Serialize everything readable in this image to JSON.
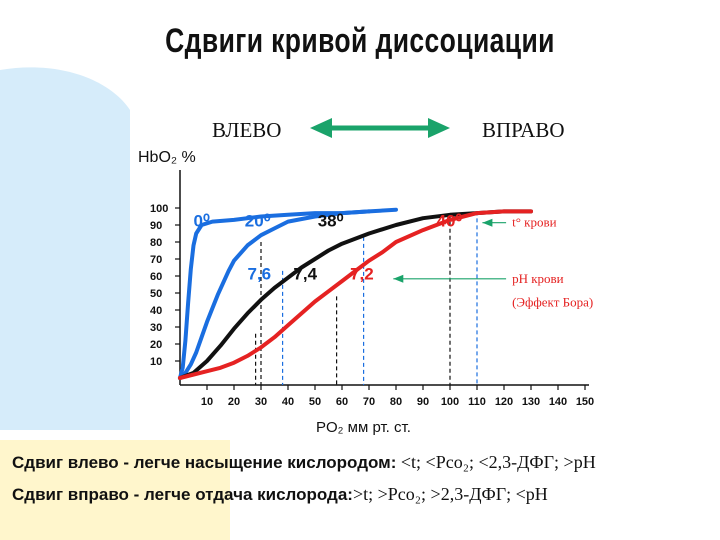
{
  "page": {
    "title": "Сдвиги кривой диссоциации",
    "left_label": "ВЛЕВО",
    "right_label": "ВПРАВО",
    "colors": {
      "accent_green": "#1aa36a",
      "bg_blue": "#d6ecfa",
      "bg_yellow": "#fff6cc"
    },
    "footer_lines": [
      {
        "bold": "Сдвиг влево - легче насыщение кислородом:",
        "rest": " <t; <Pco₂; <2,3-ДФГ; >pH"
      },
      {
        "bold": "Сдвиг вправо - легче отдача кислорода:",
        "rest": ">t; >Pco₂; >2,3-ДФГ; <pH"
      }
    ]
  },
  "chart_data": {
    "type": "line",
    "ylabel": "HbO₂ %",
    "xlabel": "PO₂  мм рт. ст.",
    "xlim": [
      0,
      150
    ],
    "ylim": [
      0,
      100
    ],
    "x_ticks": [
      10,
      20,
      30,
      40,
      50,
      60,
      70,
      80,
      90,
      100,
      110,
      120,
      130,
      140,
      150
    ],
    "y_ticks": [
      10,
      20,
      30,
      40,
      50,
      60,
      70,
      80,
      90,
      100
    ],
    "series": [
      {
        "name": "0⁰",
        "color": "#1a6ee0",
        "points": [
          [
            0,
            0
          ],
          [
            1,
            6
          ],
          [
            2,
            22
          ],
          [
            3,
            44
          ],
          [
            4,
            64
          ],
          [
            5,
            78
          ],
          [
            6,
            85
          ],
          [
            8,
            90
          ],
          [
            12,
            92
          ],
          [
            20,
            93
          ],
          [
            30,
            95
          ],
          [
            40,
            96
          ],
          [
            50,
            97
          ],
          [
            60,
            97
          ],
          [
            70,
            98
          ]
        ]
      },
      {
        "name": "20⁰",
        "color": "#1a6ee0",
        "points": [
          [
            0,
            0
          ],
          [
            2,
            3
          ],
          [
            4,
            8
          ],
          [
            6,
            15
          ],
          [
            8,
            24
          ],
          [
            10,
            33
          ],
          [
            12,
            41
          ],
          [
            14,
            49
          ],
          [
            16,
            56
          ],
          [
            18,
            63
          ],
          [
            20,
            69
          ],
          [
            25,
            78
          ],
          [
            30,
            84
          ],
          [
            35,
            88
          ],
          [
            40,
            92
          ],
          [
            50,
            95
          ],
          [
            60,
            97
          ],
          [
            70,
            98
          ],
          [
            80,
            99
          ]
        ]
      },
      {
        "name": "38⁰",
        "color": "#111111",
        "points": [
          [
            0,
            0
          ],
          [
            5,
            3
          ],
          [
            10,
            10
          ],
          [
            15,
            19
          ],
          [
            20,
            29
          ],
          [
            25,
            38
          ],
          [
            30,
            46
          ],
          [
            35,
            53
          ],
          [
            40,
            59
          ],
          [
            45,
            65
          ],
          [
            50,
            70
          ],
          [
            55,
            75
          ],
          [
            60,
            79
          ],
          [
            70,
            85
          ],
          [
            80,
            90
          ],
          [
            90,
            94
          ],
          [
            100,
            96
          ],
          [
            110,
            97
          ],
          [
            120,
            98
          ],
          [
            130,
            98
          ]
        ]
      },
      {
        "name": "40⁰",
        "color": "#e52222",
        "points": [
          [
            0,
            0
          ],
          [
            10,
            4
          ],
          [
            15,
            6
          ],
          [
            20,
            9
          ],
          [
            25,
            13
          ],
          [
            30,
            18
          ],
          [
            35,
            24
          ],
          [
            40,
            31
          ],
          [
            45,
            38
          ],
          [
            50,
            45
          ],
          [
            55,
            51
          ],
          [
            60,
            57
          ],
          [
            65,
            63
          ],
          [
            70,
            69
          ],
          [
            75,
            74
          ],
          [
            80,
            80
          ],
          [
            90,
            87
          ],
          [
            100,
            93
          ],
          [
            105,
            95
          ],
          [
            110,
            97
          ],
          [
            120,
            98
          ],
          [
            130,
            98
          ]
        ]
      }
    ],
    "curve_labels": [
      {
        "text": "0⁰",
        "color": "#1a6ee0",
        "x": 5,
        "y": 89
      },
      {
        "text": "20⁰",
        "color": "#1a6ee0",
        "x": 24,
        "y": 89
      },
      {
        "text": "38⁰",
        "color": "#111111",
        "x": 51,
        "y": 89
      },
      {
        "text": "40⁰",
        "color": "#e52222",
        "x": 95,
        "y": 89
      },
      {
        "text": "7,6",
        "color": "#1a6ee0",
        "x": 25,
        "y": 58
      },
      {
        "text": "7,4",
        "color": "#111111",
        "x": 42,
        "y": 58
      },
      {
        "text": "7,2",
        "color": "#e52222",
        "x": 63,
        "y": 58
      }
    ],
    "dashed_lines": [
      {
        "color": "#111111",
        "x": 28,
        "y": 26
      },
      {
        "color": "#111111",
        "x": 58,
        "y": 48
      },
      {
        "color": "#111111",
        "x": 100,
        "y": 96
      },
      {
        "color": "#111111",
        "x": 30,
        "y": 80
      },
      {
        "color": "#1a6ee0",
        "x": 38,
        "y": 63
      },
      {
        "color": "#1a6ee0",
        "x": 68,
        "y": 83
      },
      {
        "color": "#1a6ee0",
        "x": 110,
        "y": 98
      }
    ],
    "annotations": [
      {
        "text": "t° крови",
        "color": "#e52222",
        "x": 123,
        "y": 89,
        "arrow_to_x": 112
      },
      {
        "text": "pH крови",
        "color": "#e52222",
        "x": 123,
        "y": 56,
        "arrow_to_x": 79
      },
      {
        "text": "(Эффект Бора)",
        "color": "#e52222",
        "x": 123,
        "y": 42
      }
    ]
  }
}
